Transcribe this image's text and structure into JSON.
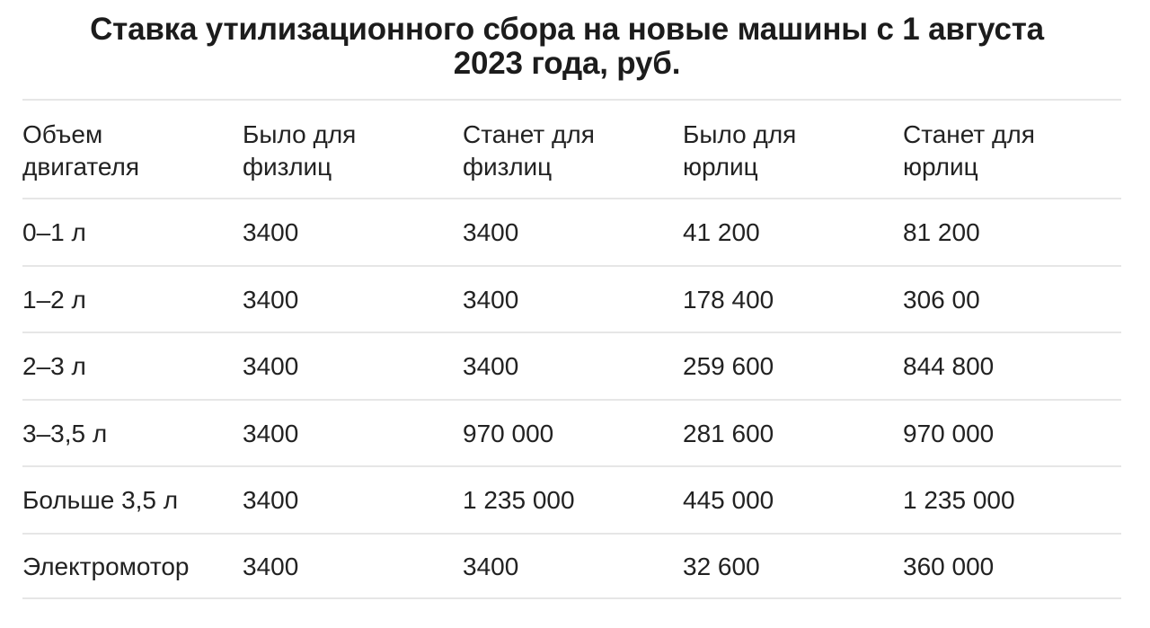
{
  "title": {
    "line1": "Ставка утилизационного сбора на новые машины с 1 августа",
    "line2": "2023 года, руб."
  },
  "table": {
    "headers": [
      "Объем\nдвигателя",
      "Было для\nфизлиц",
      "Станет для\nфизлиц",
      "Было для\nюрлиц",
      "Станет для\nюрлиц"
    ],
    "rows": [
      [
        "0–1 л",
        "3400",
        "3400",
        "41 200",
        "81 200"
      ],
      [
        "1–2 л",
        "3400",
        "3400",
        "178 400",
        "306 00"
      ],
      [
        "2–3 л",
        "3400",
        "3400",
        "259 600",
        "844 800"
      ],
      [
        "3–3,5 л",
        "3400",
        "970 000",
        "281 600",
        "970 000"
      ],
      [
        "Больше 3,5 л",
        "3400",
        "1 235 000",
        "445 000",
        "1 235 000"
      ],
      [
        "Электромотор",
        "3400",
        "3400",
        "32 600",
        "360 000"
      ]
    ]
  },
  "colors": {
    "text": "#1c1c1c",
    "separator": "#e6e6e6",
    "background": "#ffffff"
  }
}
